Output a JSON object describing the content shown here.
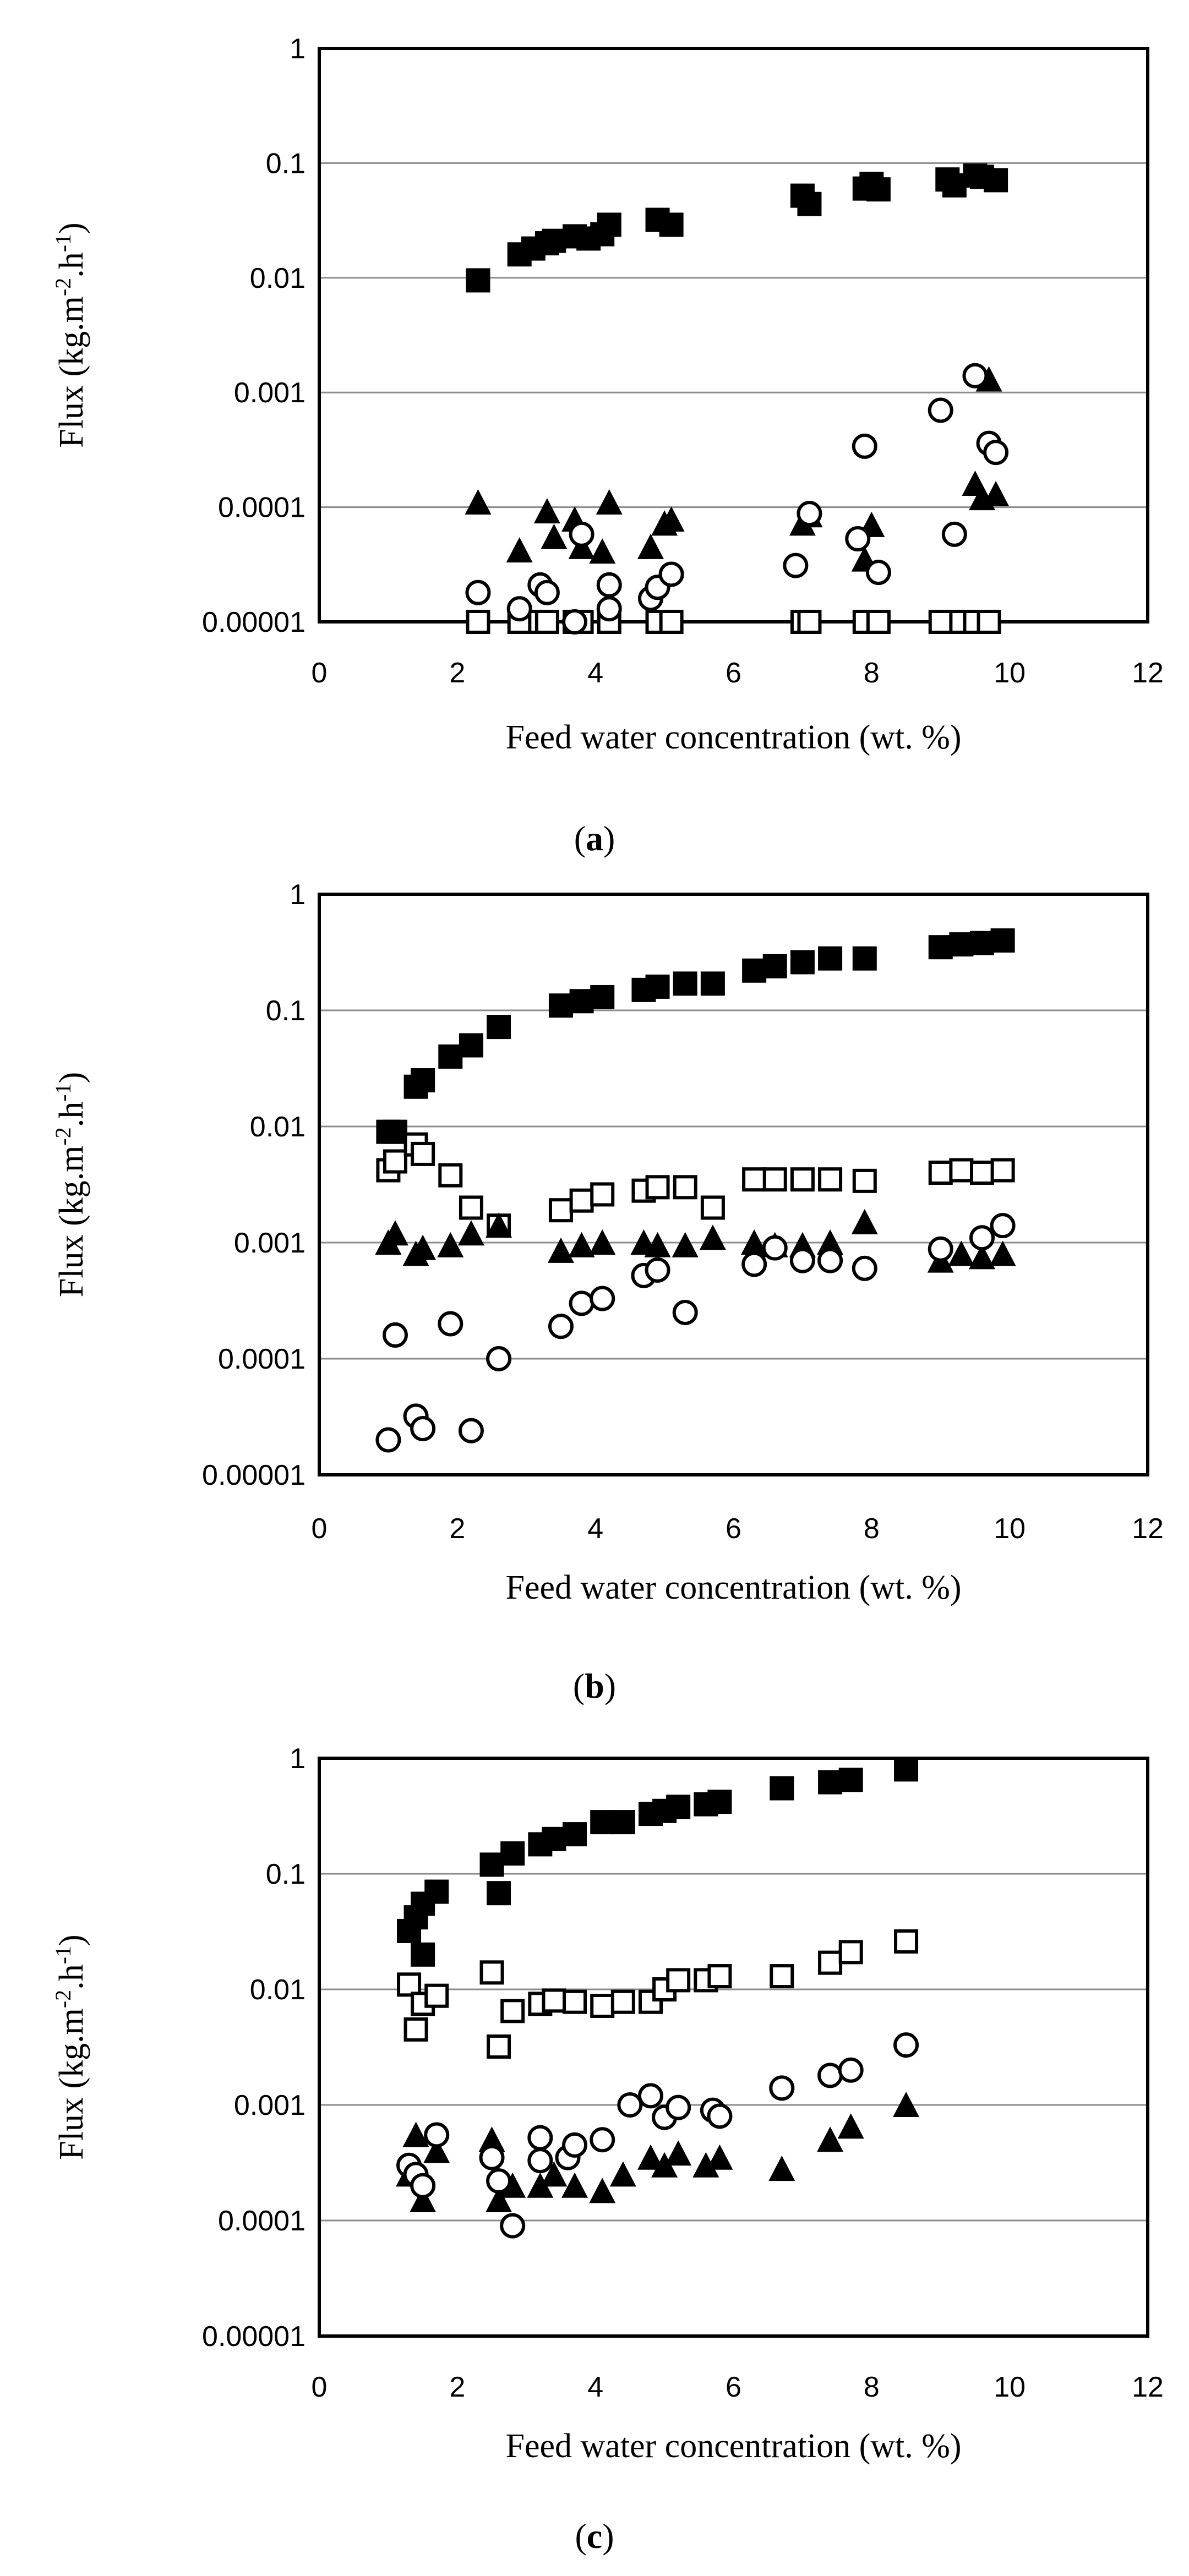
{
  "chart_data": [
    {
      "type": "scatter",
      "panel_label": "a",
      "panel_label_display": "(a)",
      "xlabel": "Feed water concentration (wt. %)",
      "ylabel": "Flux (kg.m-2.h-1)",
      "ylabel_base": "Flux (kg.m",
      "ylabel_sup1": "-2",
      "ylabel_mid": ".h",
      "ylabel_sup2": "-1",
      "ylabel_end": ")",
      "x_scale": "linear",
      "y_scale": "log",
      "xlim": [
        0,
        12
      ],
      "ylim": [
        1e-05,
        1
      ],
      "x_ticks": [
        0,
        2,
        4,
        6,
        8,
        10,
        12
      ],
      "x_tick_labels": [
        "0",
        "2",
        "4",
        "6",
        "8",
        "10",
        "12"
      ],
      "y_ticks": [
        1e-05,
        0.0001,
        0.001,
        0.01,
        0.1,
        1
      ],
      "y_tick_labels": [
        "0.00001",
        "0.0001",
        "0.001",
        "0.01",
        "0.1",
        "1"
      ],
      "grid": "horizontal",
      "series": [
        {
          "name": "filled-square",
          "marker": "square-filled",
          "x": [
            2.3,
            2.9,
            3.1,
            3.3,
            3.4,
            3.7,
            3.9,
            4.1,
            4.2,
            4.9,
            5.1,
            7.0,
            7.1,
            7.9,
            8.0,
            8.1,
            9.1,
            9.2,
            9.5,
            9.6,
            9.8
          ],
          "y": [
            0.0095,
            0.016,
            0.018,
            0.02,
            0.021,
            0.023,
            0.022,
            0.024,
            0.029,
            0.032,
            0.029,
            0.052,
            0.044,
            0.06,
            0.066,
            0.059,
            0.072,
            0.064,
            0.078,
            0.076,
            0.071
          ]
        },
        {
          "name": "open-square",
          "marker": "square-open",
          "x": [
            2.3,
            2.9,
            3.2,
            3.3,
            3.7,
            3.8,
            4.2,
            4.9,
            5.1,
            7.0,
            7.1,
            7.9,
            8.1,
            9.0,
            9.3,
            9.5,
            9.7
          ],
          "y": [
            1e-05,
            1e-05,
            1e-05,
            1e-05,
            1e-05,
            1e-05,
            1e-05,
            1e-05,
            1e-05,
            1e-05,
            1e-05,
            1e-05,
            1e-05,
            1e-05,
            1e-05,
            1e-05,
            1e-05
          ]
        },
        {
          "name": "filled-triangle",
          "marker": "triangle-filled",
          "x": [
            2.3,
            2.9,
            3.3,
            3.4,
            3.7,
            3.8,
            4.1,
            4.2,
            4.8,
            5.0,
            5.1,
            7.0,
            7.1,
            7.9,
            8.0,
            9.5,
            9.6,
            9.7,
            9.8
          ],
          "y": [
            0.00011,
            4.2e-05,
            9.2e-05,
            5.5e-05,
            7.8e-05,
            4.5e-05,
            4.1e-05,
            0.00011,
            4.5e-05,
            7.2e-05,
            7.8e-05,
            7.2e-05,
            8.5e-05,
            3.5e-05,
            7e-05,
            0.00016,
            0.00012,
            0.0013,
            0.00013
          ]
        },
        {
          "name": "open-circle",
          "marker": "circle-open",
          "x": [
            2.3,
            2.9,
            3.2,
            3.3,
            3.7,
            3.8,
            4.2,
            4.2,
            4.8,
            4.9,
            5.1,
            6.9,
            7.1,
            7.8,
            7.9,
            8.1,
            9.0,
            9.2,
            9.5,
            9.7,
            9.8
          ],
          "y": [
            1.8e-05,
            1.3e-05,
            2.1e-05,
            1.8e-05,
            1e-05,
            5.8e-05,
            2.1e-05,
            1.3e-05,
            1.6e-05,
            2e-05,
            2.6e-05,
            3.1e-05,
            8.8e-05,
            5.3e-05,
            0.00034,
            2.7e-05,
            0.0007,
            5.8e-05,
            0.0014,
            0.00036,
            0.0003
          ]
        }
      ]
    },
    {
      "type": "scatter",
      "panel_label": "b",
      "panel_label_display": "(b)",
      "xlabel": "Feed water concentration (wt. %)",
      "ylabel": "Flux (kg.m-2.h-1)",
      "ylabel_base": "Flux (kg.m",
      "ylabel_sup1": "-2",
      "ylabel_mid": ".h",
      "ylabel_sup2": "-1",
      "ylabel_end": ")",
      "x_scale": "linear",
      "y_scale": "log",
      "xlim": [
        0,
        12
      ],
      "ylim": [
        1e-05,
        1
      ],
      "x_ticks": [
        0,
        2,
        4,
        6,
        8,
        10,
        12
      ],
      "x_tick_labels": [
        "0",
        "2",
        "4",
        "6",
        "8",
        "10",
        "12"
      ],
      "y_ticks": [
        1e-05,
        0.0001,
        0.001,
        0.01,
        0.1,
        1
      ],
      "y_tick_labels": [
        "0.00001",
        "0.0001",
        "0.001",
        "0.01",
        "0.1",
        "1"
      ],
      "grid": "horizontal",
      "series": [
        {
          "name": "filled-square",
          "marker": "square-filled",
          "x": [
            1.0,
            1.1,
            1.4,
            1.5,
            1.9,
            2.2,
            2.6,
            3.5,
            3.8,
            4.1,
            4.7,
            4.9,
            5.3,
            5.7,
            6.3,
            6.6,
            7.0,
            7.4,
            7.9,
            9.0,
            9.3,
            9.6,
            9.9
          ],
          "y": [
            0.009,
            0.009,
            0.022,
            0.025,
            0.04,
            0.05,
            0.072,
            0.11,
            0.12,
            0.13,
            0.15,
            0.16,
            0.17,
            0.17,
            0.22,
            0.24,
            0.26,
            0.28,
            0.28,
            0.35,
            0.37,
            0.38,
            0.4
          ]
        },
        {
          "name": "open-square",
          "marker": "square-open",
          "x": [
            1.0,
            1.1,
            1.4,
            1.5,
            1.9,
            2.2,
            2.6,
            3.5,
            3.8,
            4.1,
            4.7,
            4.9,
            5.3,
            5.7,
            6.3,
            6.6,
            7.0,
            7.4,
            7.9,
            9.0,
            9.3,
            9.6,
            9.9
          ],
          "y": [
            0.0042,
            0.005,
            0.007,
            0.0058,
            0.0038,
            0.002,
            0.0014,
            0.0019,
            0.0023,
            0.0026,
            0.0028,
            0.003,
            0.003,
            0.002,
            0.0035,
            0.0035,
            0.0035,
            0.0035,
            0.0034,
            0.004,
            0.0042,
            0.004,
            0.0042
          ]
        },
        {
          "name": "filled-triangle",
          "marker": "triangle-filled",
          "x": [
            1.0,
            1.1,
            1.4,
            1.5,
            1.9,
            2.2,
            2.6,
            3.5,
            3.8,
            4.1,
            4.7,
            4.9,
            5.3,
            5.7,
            6.3,
            6.6,
            7.0,
            7.4,
            7.9,
            9.0,
            9.3,
            9.6,
            9.9
          ],
          "y": [
            0.001,
            0.0012,
            0.0008,
            0.0009,
            0.00095,
            0.0012,
            0.0014,
            0.00085,
            0.00095,
            0.001,
            0.001,
            0.00095,
            0.00095,
            0.0011,
            0.001,
            0.00095,
            0.00095,
            0.001,
            0.0015,
            0.0007,
            0.0008,
            0.00075,
            0.0008
          ]
        },
        {
          "name": "open-circle",
          "marker": "circle-open",
          "x": [
            1.0,
            1.1,
            1.4,
            1.5,
            1.9,
            2.2,
            2.6,
            3.5,
            3.8,
            4.1,
            4.7,
            4.9,
            5.3,
            6.3,
            6.6,
            7.0,
            7.4,
            7.9,
            9.0,
            9.6,
            9.9
          ],
          "y": [
            2e-05,
            0.00016,
            3.2e-05,
            2.5e-05,
            0.0002,
            2.4e-05,
            0.0001,
            0.00019,
            0.0003,
            0.00033,
            0.00052,
            0.00058,
            0.00025,
            0.00065,
            0.0009,
            0.0007,
            0.0007,
            0.0006,
            0.00088,
            0.0011,
            0.0014
          ]
        }
      ]
    },
    {
      "type": "scatter",
      "panel_label": "c",
      "panel_label_display": "(c)",
      "xlabel": "Feed water concentration (wt. %)",
      "ylabel": "Flux (kg.m-2.h-1)",
      "ylabel_base": "Flux (kg.m",
      "ylabel_sup1": "-2",
      "ylabel_mid": ".h",
      "ylabel_sup2": "-1",
      "ylabel_end": ")",
      "x_scale": "linear",
      "y_scale": "log",
      "xlim": [
        0,
        12
      ],
      "ylim": [
        1e-05,
        1
      ],
      "x_ticks": [
        0,
        2,
        4,
        6,
        8,
        10,
        12
      ],
      "x_tick_labels": [
        "0",
        "2",
        "4",
        "6",
        "8",
        "10",
        "12"
      ],
      "y_ticks": [
        1e-05,
        0.0001,
        0.001,
        0.01,
        0.1,
        1
      ],
      "y_tick_labels": [
        "0.00001",
        "0.0001",
        "0.001",
        "0.01",
        "0.1",
        "1"
      ],
      "grid": "horizontal",
      "series": [
        {
          "name": "filled-square",
          "marker": "square-filled",
          "x": [
            1.3,
            1.4,
            1.5,
            1.5,
            1.7,
            2.5,
            2.6,
            2.8,
            3.2,
            3.4,
            3.7,
            4.1,
            4.4,
            4.8,
            5.0,
            5.2,
            5.6,
            5.8,
            6.7,
            7.4,
            7.7,
            8.5
          ],
          "y": [
            0.032,
            0.042,
            0.055,
            0.02,
            0.07,
            0.12,
            0.068,
            0.15,
            0.18,
            0.2,
            0.22,
            0.28,
            0.28,
            0.33,
            0.35,
            0.38,
            0.4,
            0.42,
            0.55,
            0.62,
            0.65,
            0.8
          ]
        },
        {
          "name": "open-square",
          "marker": "square-open",
          "x": [
            1.3,
            1.4,
            1.5,
            1.7,
            2.5,
            2.6,
            2.8,
            3.2,
            3.4,
            3.7,
            4.1,
            4.4,
            4.8,
            5.0,
            5.2,
            5.6,
            5.8,
            6.7,
            7.4,
            7.7,
            8.5
          ],
          "y": [
            0.011,
            0.0045,
            0.0075,
            0.0088,
            0.014,
            0.0032,
            0.0065,
            0.0075,
            0.008,
            0.0078,
            0.0072,
            0.0078,
            0.0078,
            0.01,
            0.012,
            0.012,
            0.013,
            0.013,
            0.017,
            0.021,
            0.026
          ]
        },
        {
          "name": "filled-triangle",
          "marker": "triangle-filled",
          "x": [
            1.3,
            1.4,
            1.5,
            1.7,
            2.5,
            2.6,
            2.8,
            3.2,
            3.4,
            3.7,
            4.1,
            4.4,
            4.8,
            5.0,
            5.2,
            5.6,
            5.8,
            6.7,
            7.4,
            7.7,
            8.5
          ],
          "y": [
            0.00025,
            0.00055,
            0.00015,
            0.0004,
            0.0005,
            0.00015,
            0.0002,
            0.0002,
            0.00025,
            0.0002,
            0.00018,
            0.00025,
            0.00035,
            0.0003,
            0.00038,
            0.0003,
            0.00035,
            0.00028,
            0.0005,
            0.00065,
            0.001
          ]
        },
        {
          "name": "open-circle",
          "marker": "circle-open",
          "x": [
            1.3,
            1.4,
            1.5,
            1.7,
            2.5,
            2.6,
            2.8,
            3.2,
            3.2,
            3.6,
            3.7,
            4.1,
            4.5,
            4.8,
            5.0,
            5.2,
            5.7,
            5.8,
            6.7,
            7.4,
            7.7,
            8.5
          ],
          "y": [
            0.0003,
            0.00025,
            0.0002,
            0.00055,
            0.00035,
            0.00022,
            9e-05,
            0.00052,
            0.00033,
            0.00035,
            0.00045,
            0.0005,
            0.001,
            0.0012,
            0.00078,
            0.00095,
            0.0009,
            0.0008,
            0.0014,
            0.0018,
            0.002,
            0.0033
          ]
        }
      ]
    }
  ]
}
